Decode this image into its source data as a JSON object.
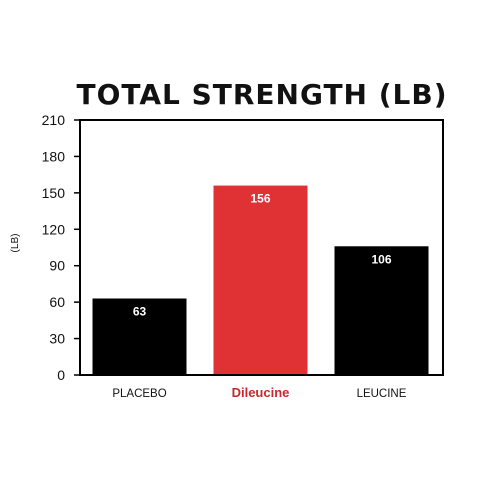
{
  "chart_data": {
    "type": "bar",
    "title": "TOTAL STRENGTH (LB)",
    "ylabel": "(LB)",
    "xlabel": "",
    "categories": [
      "PLACEBO",
      "Dileucine",
      "LEUCINE"
    ],
    "values": [
      63,
      156,
      106
    ],
    "data_labels": [
      "63",
      "156",
      "106"
    ],
    "ylim": [
      0,
      210
    ],
    "yticks": [
      0,
      30,
      60,
      90,
      120,
      150,
      180,
      210
    ],
    "ytick_labels": [
      "0",
      "30",
      "60",
      "90",
      "120",
      "150",
      "180",
      "210"
    ],
    "bar_colors": [
      "#000000",
      "#e03234",
      "#000000"
    ],
    "category_label_colors": [
      "#111111",
      "#c8282c",
      "#111111"
    ],
    "highlighted_category": "Dileucine",
    "grid": false,
    "legend": "none"
  }
}
